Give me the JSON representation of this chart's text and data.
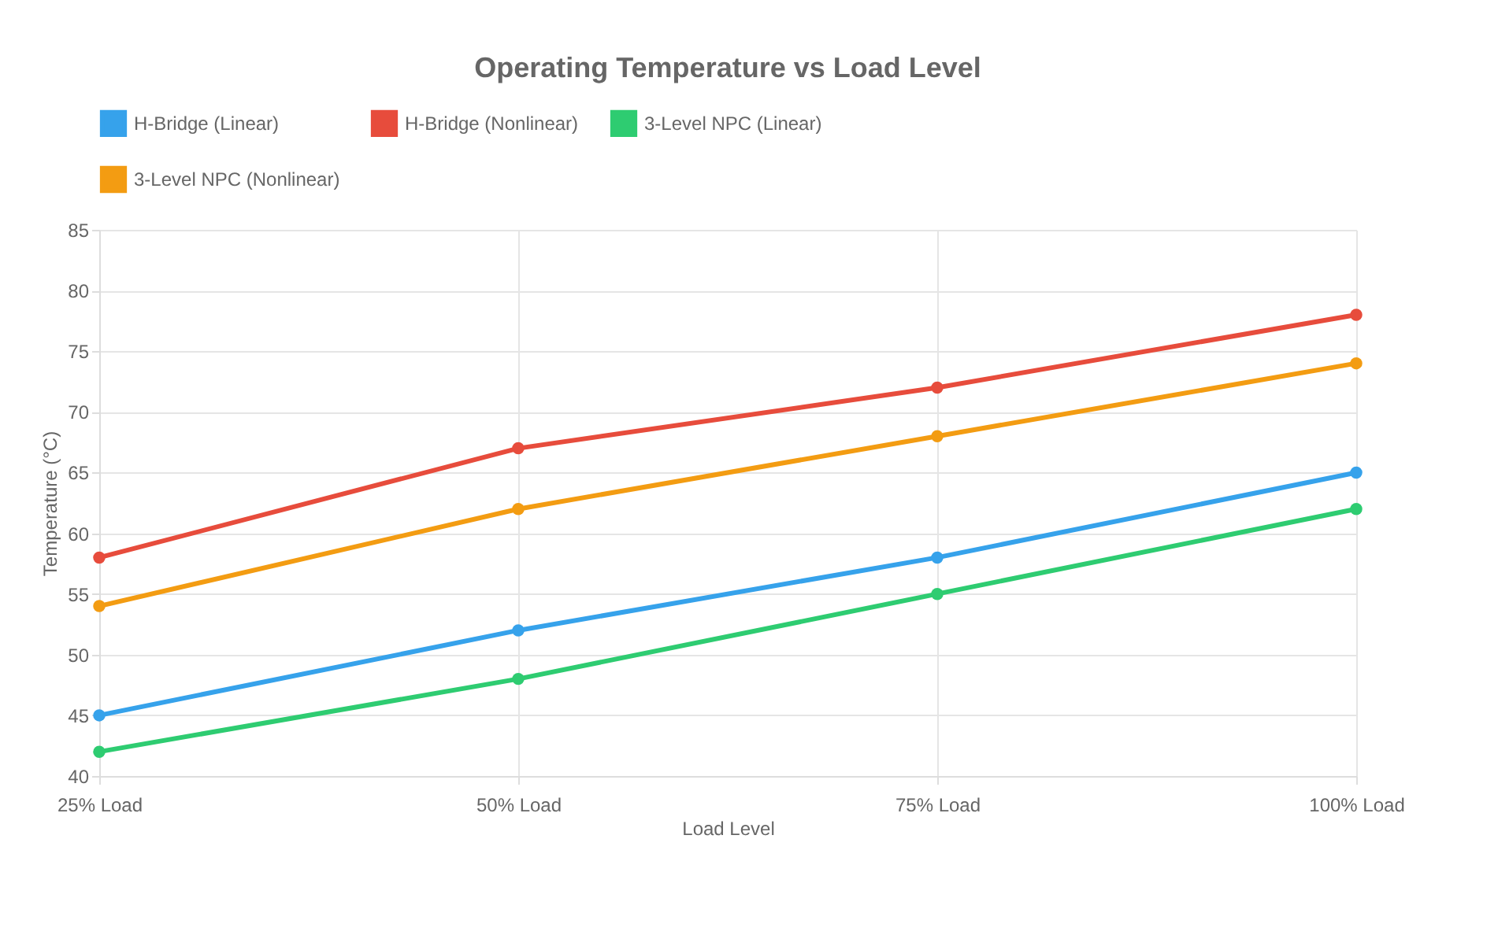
{
  "chart_data": {
    "type": "line",
    "title": "Operating Temperature vs Load Level",
    "xlabel": "Load Level",
    "ylabel": "Temperature (°C)",
    "categories": [
      "25% Load",
      "50% Load",
      "75% Load",
      "100% Load"
    ],
    "series": [
      {
        "name": "H-Bridge (Linear)",
        "color": "#36a2eb",
        "values": [
          45,
          52,
          58,
          65
        ]
      },
      {
        "name": "H-Bridge (Nonlinear)",
        "color": "#e74c3c",
        "values": [
          58,
          67,
          72,
          78
        ]
      },
      {
        "name": "3-Level NPC (Linear)",
        "color": "#2ecc71",
        "values": [
          42,
          48,
          55,
          62
        ]
      },
      {
        "name": "3-Level NPC (Nonlinear)",
        "color": "#f39c12",
        "values": [
          54,
          62,
          68,
          74
        ]
      }
    ],
    "ylim": [
      40,
      85
    ],
    "yticks": [
      40,
      45,
      50,
      55,
      60,
      65,
      70,
      75,
      80,
      85
    ],
    "grid": true,
    "legend": "top",
    "marker": "circle",
    "line_style": "solid"
  }
}
